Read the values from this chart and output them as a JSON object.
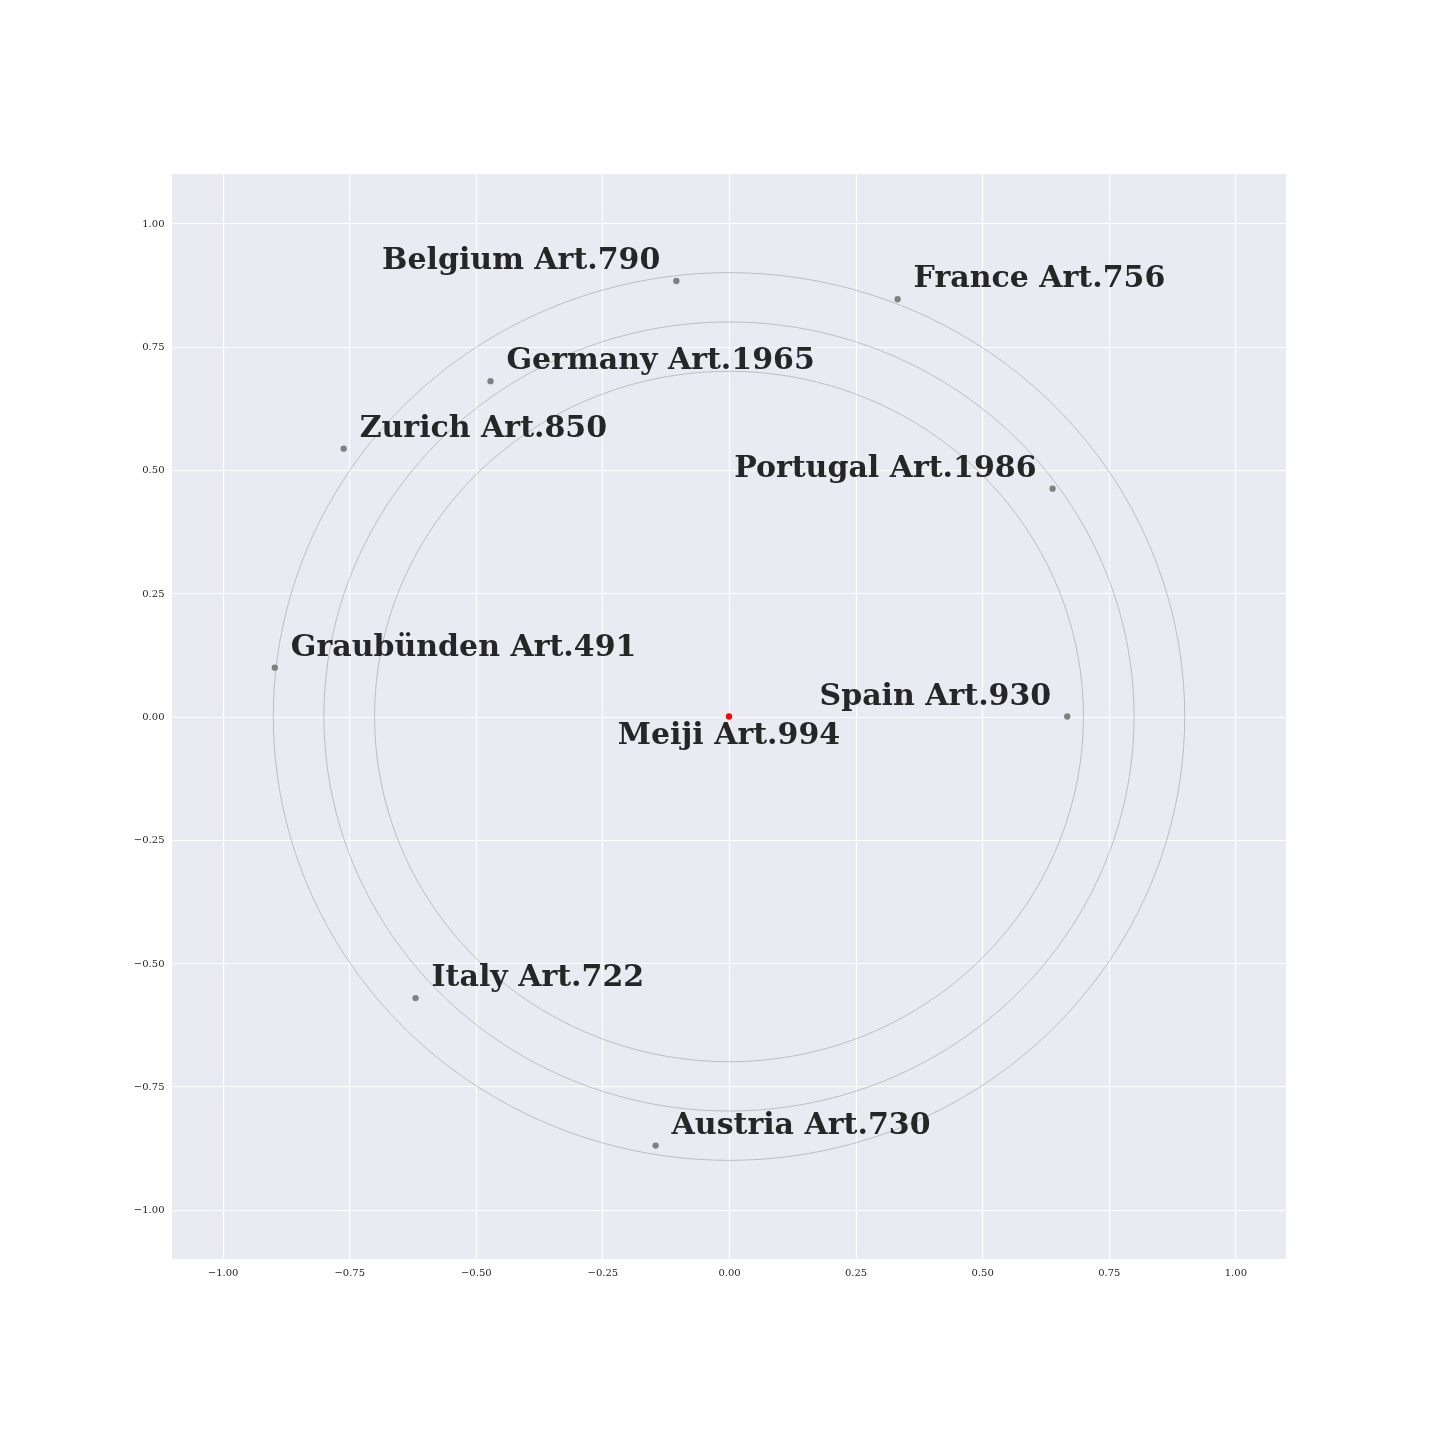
{
  "chart_data": {
    "type": "scatter",
    "xlim": [
      -1.1,
      1.1
    ],
    "ylim": [
      -1.1,
      1.1
    ],
    "xticks": [
      {
        "value": -1,
        "label": "−1.00"
      },
      {
        "value": -0.75,
        "label": "−0.75"
      },
      {
        "value": -0.5,
        "label": "−0.50"
      },
      {
        "value": -0.25,
        "label": "−0.25"
      },
      {
        "value": 0,
        "label": "0.00"
      },
      {
        "value": 0.25,
        "label": "0.25"
      },
      {
        "value": 0.5,
        "label": "0.50"
      },
      {
        "value": 0.75,
        "label": "0.75"
      },
      {
        "value": 1,
        "label": "1.00"
      }
    ],
    "yticks": [
      {
        "value": -1,
        "label": "−1.00"
      },
      {
        "value": -0.75,
        "label": "−0.75"
      },
      {
        "value": -0.5,
        "label": "−0.50"
      },
      {
        "value": -0.25,
        "label": "−0.25"
      },
      {
        "value": 0,
        "label": "0.00"
      },
      {
        "value": 0.25,
        "label": "0.25"
      },
      {
        "value": 0.5,
        "label": "0.50"
      },
      {
        "value": 0.75,
        "label": "0.75"
      },
      {
        "value": 1,
        "label": "1.00"
      }
    ],
    "grid": true,
    "marker": "circle",
    "series": [
      {
        "type": "scatter",
        "x": [
          -0.104,
          0.333,
          -0.471,
          -0.761,
          0.639,
          -0.897,
          0.668,
          0,
          -0.619,
          -0.145
        ],
        "values": [
          0.883,
          0.846,
          0.68,
          0.543,
          0.462,
          0.099,
          0,
          0,
          -0.571,
          -0.87
        ],
        "colors": [
          "#808080",
          "#808080",
          "#808080",
          "#808080",
          "#808080",
          "#808080",
          "#808080",
          "#ff0000",
          "#808080",
          "#808080"
        ],
        "value_labels": [
          "Belgium Art.790",
          "France Art.756",
          "Germany Art.1965",
          "Zurich Art.850",
          "Portugal Art.1986",
          "Graubünden Art.491",
          "Spain Art.930",
          "Meiji Art.994",
          "Italy Art.722",
          "Austria Art.730"
        ]
      }
    ]
  }
}
